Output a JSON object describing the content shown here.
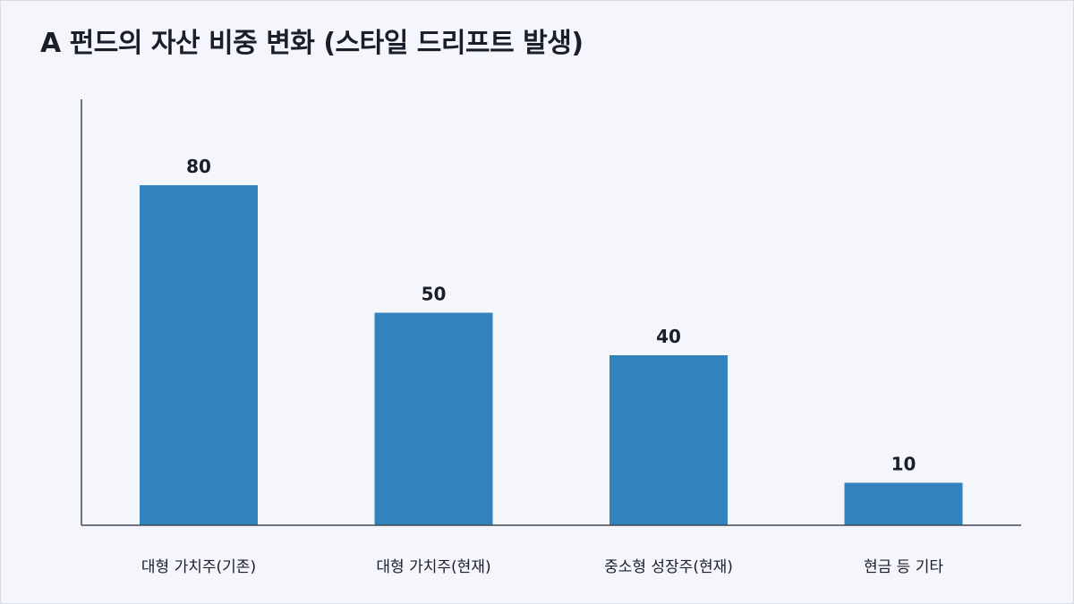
{
  "chart_data": {
    "type": "bar",
    "title": "A 펀드의 자산 비중 변화 (스타일 드리프트 발생)",
    "categories": [
      "대형 가치주(기존)",
      "대형 가치주(현재)",
      "중소형 성장주(현재)",
      "현금 등 기타"
    ],
    "values": [
      80,
      50,
      40,
      10
    ],
    "xlabel": "",
    "ylabel": "",
    "ylim": [
      0,
      100
    ],
    "grid": false,
    "legend": "none",
    "bar_color": "#3182bd"
  }
}
